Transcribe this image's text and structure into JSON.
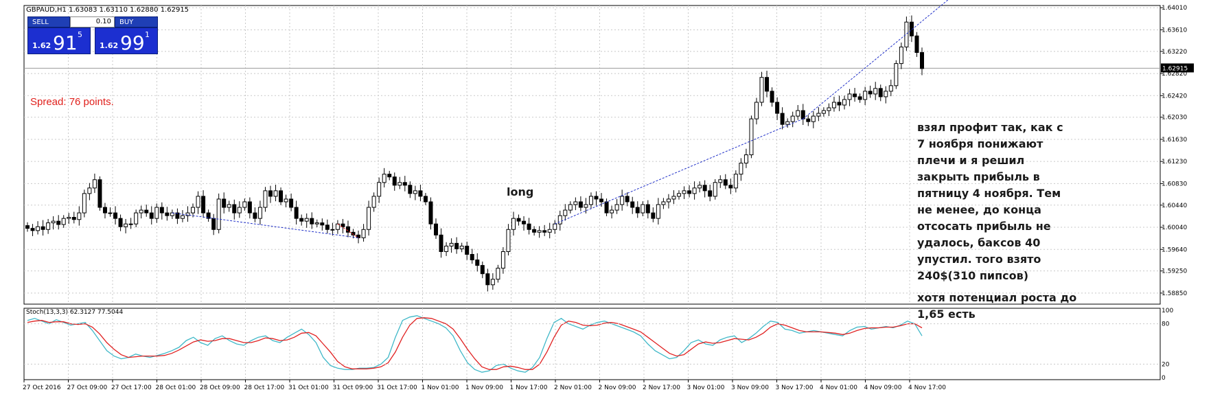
{
  "symbol_header": "GBPAUD,H1  1.63083 1.63110 1.62880 1.62915",
  "trade_panel": {
    "sell_label": "SELL",
    "buy_label": "BUY",
    "lot_value": "0.10",
    "sell_prefix": "1.62",
    "sell_big": "91",
    "sell_sup": "5",
    "buy_prefix": "1.62",
    "buy_big": "99",
    "buy_sup": "1"
  },
  "spread_text": "Spread: 76 points.",
  "annotations": {
    "long_label": "long",
    "comment_lines": [
      "взял профит так, как с",
      "7 ноября понижают",
      "плечи и я решил",
      "закрыть прибыль в",
      "пятницу 4 ноября. Тем",
      "не менее, до конца",
      "отсосать прибыль не",
      "удалось, баксов 40",
      "упустил. того взято",
      "240$(310 пипсов)"
    ],
    "comment_tail": [
      "хотя потенциал роста до",
      "1,65 есть"
    ]
  },
  "current_price": "1.62915",
  "colors": {
    "grid": "#c8c8c8",
    "candle": "#000000",
    "trend_line": "#2030c8",
    "stoch_main": "#3fb8c8",
    "stoch_signal": "#e02020",
    "price_box_bg": "#1c2fd0",
    "spread_text": "#e0201c"
  },
  "chart_data": {
    "type": "candlestick",
    "title": "GBPAUD,H1",
    "price_axis": {
      "range": [
        1.5865,
        1.6405
      ],
      "ticks": [
        "1.64010",
        "1.63610",
        "1.63220",
        "1.62820",
        "1.62420",
        "1.62030",
        "1.61630",
        "1.61230",
        "1.60830",
        "1.60440",
        "1.60040",
        "1.59640",
        "1.59250",
        "1.58850"
      ]
    },
    "time_axis": {
      "labels": [
        "27 Oct 2016",
        "27 Oct 09:00",
        "27 Oct 17:00",
        "28 Oct 01:00",
        "28 Oct 09:00",
        "28 Oct 17:00",
        "31 Oct 01:00",
        "31 Oct 09:00",
        "31 Oct 17:00",
        "1 Nov 01:00",
        "1 Nov 09:00",
        "1 Nov 17:00",
        "2 Nov 01:00",
        "2 Nov 09:00",
        "2 Nov 17:00",
        "3 Nov 01:00",
        "3 Nov 09:00",
        "3 Nov 17:00",
        "4 Nov 01:00",
        "4 Nov 09:00",
        "4 Nov 17:00"
      ]
    },
    "close_series": [
      1.6002,
      1.5998,
      1.6005,
      1.6,
      1.6012,
      1.6015,
      1.6009,
      1.602,
      1.6022,
      1.6018,
      1.603,
      1.6065,
      1.6075,
      1.609,
      1.604,
      1.603,
      1.603,
      1.602,
      1.6005,
      1.601,
      1.601,
      1.603,
      1.6035,
      1.603,
      1.602,
      1.604,
      1.603,
      1.6025,
      1.603,
      1.602,
      1.6025,
      1.603,
      1.604,
      1.606,
      1.603,
      1.602,
      1.6,
      1.6055,
      1.604,
      1.6045,
      1.603,
      1.604,
      1.605,
      1.603,
      1.602,
      1.604,
      1.607,
      1.606,
      1.607,
      1.605,
      1.6055,
      1.604,
      1.602,
      1.6015,
      1.602,
      1.601,
      1.6012,
      1.6008,
      1.6,
      1.6,
      1.601,
      1.6005,
      1.5995,
      1.599,
      1.5985,
      1.6,
      1.604,
      1.606,
      1.6085,
      1.61,
      1.6095,
      1.608,
      1.6085,
      1.608,
      1.6065,
      1.607,
      1.606,
      1.605,
      1.601,
      1.599,
      1.596,
      1.597,
      1.5975,
      1.5965,
      1.597,
      1.5955,
      1.5945,
      1.5935,
      1.592,
      1.59,
      1.591,
      1.593,
      1.596,
      1.6,
      1.602,
      1.6015,
      1.601,
      1.6,
      1.5995,
      1.5998,
      1.5995,
      1.6,
      1.601,
      1.6025,
      1.6035,
      1.6045,
      1.605,
      1.604,
      1.6045,
      1.606,
      1.6055,
      1.605,
      1.603,
      1.6035,
      1.6045,
      1.606,
      1.605,
      1.604,
      1.603,
      1.6045,
      1.603,
      1.602,
      1.6045,
      1.605,
      1.6055,
      1.606,
      1.6065,
      1.607,
      1.6065,
      1.6075,
      1.608,
      1.607,
      1.606,
      1.6085,
      1.609,
      1.608,
      1.6075,
      1.61,
      1.612,
      1.6135,
      1.62,
      1.623,
      1.6275,
      1.625,
      1.623,
      1.621,
      1.619,
      1.6195,
      1.6205,
      1.6215,
      1.62,
      1.6195,
      1.6205,
      1.621,
      1.6215,
      1.622,
      1.623,
      1.6225,
      1.6235,
      1.6245,
      1.624,
      1.6235,
      1.625,
      1.6245,
      1.6255,
      1.624,
      1.625,
      1.626,
      1.63,
      1.633,
      1.6375,
      1.635,
      1.632,
      1.6291
    ],
    "stochastic": {
      "label": "Stoch(13,3,3) 62.3127 77.5044",
      "levels": [
        "100",
        "80",
        "20",
        "0"
      ],
      "main": [
        85,
        88,
        84,
        80,
        86,
        82,
        78,
        80,
        82,
        70,
        55,
        40,
        32,
        28,
        30,
        35,
        32,
        30,
        33,
        36,
        40,
        45,
        55,
        60,
        52,
        48,
        58,
        62,
        55,
        50,
        48,
        55,
        60,
        62,
        55,
        52,
        60,
        66,
        72,
        64,
        52,
        30,
        18,
        14,
        12,
        12,
        14,
        14,
        15,
        20,
        30,
        60,
        85,
        90,
        92,
        88,
        84,
        80,
        74,
        62,
        40,
        22,
        12,
        8,
        10,
        18,
        20,
        14,
        10,
        8,
        15,
        30,
        58,
        82,
        88,
        80,
        76,
        72,
        78,
        82,
        84,
        80,
        76,
        72,
        68,
        62,
        50,
        40,
        34,
        28,
        30,
        40,
        52,
        56,
        50,
        48,
        56,
        60,
        62,
        52,
        58,
        66,
        76,
        84,
        82,
        72,
        70,
        66,
        68,
        70,
        68,
        66,
        64,
        62,
        70,
        75,
        76,
        72,
        74,
        76,
        74,
        78,
        84,
        80,
        62
      ],
      "signal": [
        82,
        84,
        85,
        82,
        83,
        83,
        80,
        79,
        80,
        75,
        65,
        52,
        42,
        34,
        30,
        31,
        32,
        32,
        32,
        33,
        36,
        41,
        47,
        53,
        56,
        54,
        55,
        58,
        58,
        55,
        52,
        52,
        55,
        59,
        58,
        55,
        56,
        60,
        66,
        67,
        62,
        50,
        38,
        24,
        16,
        13,
        13,
        13,
        14,
        16,
        22,
        38,
        60,
        78,
        88,
        89,
        88,
        84,
        80,
        72,
        58,
        42,
        28,
        16,
        12,
        12,
        16,
        17,
        15,
        12,
        12,
        20,
        38,
        60,
        78,
        84,
        82,
        78,
        77,
        78,
        81,
        82,
        80,
        76,
        72,
        68,
        60,
        52,
        44,
        36,
        32,
        34,
        42,
        50,
        53,
        51,
        52,
        55,
        58,
        57,
        56,
        60,
        66,
        75,
        80,
        78,
        74,
        70,
        68,
        68,
        68,
        67,
        66,
        64,
        66,
        70,
        73,
        74,
        74,
        75,
        75,
        77,
        80,
        80,
        74
      ]
    }
  }
}
